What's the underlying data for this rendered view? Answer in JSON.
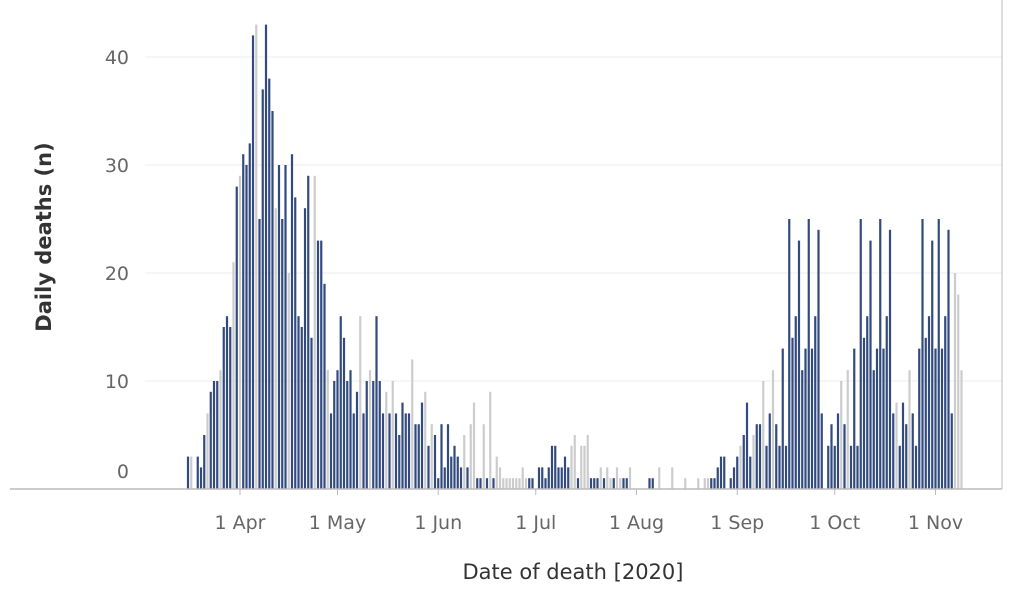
{
  "chart_data": {
    "type": "bar",
    "title": "",
    "xlabel": "Date of death [2020]",
    "ylabel": "Daily deaths (n)",
    "ylim": [
      0,
      45
    ],
    "grid": true,
    "colors": {
      "primary": "#334a7f",
      "secondary": "#cccccc",
      "grid": "#eeeeee",
      "axis": "#bbbbbb"
    },
    "x_ticks": [
      {
        "date": "2020-04-01",
        "label": "1 Apr"
      },
      {
        "date": "2020-05-01",
        "label": "1 May"
      },
      {
        "date": "2020-06-01",
        "label": "1 Jun"
      },
      {
        "date": "2020-07-01",
        "label": "1 Jul"
      },
      {
        "date": "2020-08-01",
        "label": "1 Aug"
      },
      {
        "date": "2020-09-01",
        "label": "1 Sep"
      },
      {
        "date": "2020-10-01",
        "label": "1 Oct"
      },
      {
        "date": "2020-11-01",
        "label": "1 Nov"
      }
    ],
    "y_ticks": [
      0,
      10,
      20,
      30,
      40
    ],
    "series": [
      {
        "data": [
          [
            "2020-03-16",
            3
          ],
          [
            "2020-03-19",
            3
          ],
          [
            "2020-03-20",
            2
          ],
          [
            "2020-03-21",
            5
          ],
          [
            "2020-03-23",
            9
          ],
          [
            "2020-03-24",
            10
          ],
          [
            "2020-03-25",
            10
          ],
          [
            "2020-03-27",
            15
          ],
          [
            "2020-03-28",
            16
          ],
          [
            "2020-03-29",
            15
          ],
          [
            "2020-03-31",
            28
          ],
          [
            "2020-04-02",
            31
          ],
          [
            "2020-04-03",
            30
          ],
          [
            "2020-04-04",
            32
          ],
          [
            "2020-04-05",
            42
          ],
          [
            "2020-04-07",
            25
          ],
          [
            "2020-04-08",
            37
          ],
          [
            "2020-04-09",
            43
          ],
          [
            "2020-04-10",
            38
          ],
          [
            "2020-04-11",
            35
          ],
          [
            "2020-04-13",
            30
          ],
          [
            "2020-04-14",
            25
          ],
          [
            "2020-04-15",
            30
          ],
          [
            "2020-04-17",
            31
          ],
          [
            "2020-04-18",
            27
          ],
          [
            "2020-04-19",
            16
          ],
          [
            "2020-04-20",
            15
          ],
          [
            "2020-04-21",
            26
          ],
          [
            "2020-04-22",
            29
          ],
          [
            "2020-04-23",
            14
          ],
          [
            "2020-04-25",
            23
          ],
          [
            "2020-04-26",
            23
          ],
          [
            "2020-04-27",
            19
          ],
          [
            "2020-04-29",
            7
          ],
          [
            "2020-04-30",
            10
          ],
          [
            "2020-05-01",
            11
          ],
          [
            "2020-05-02",
            16
          ],
          [
            "2020-05-03",
            14
          ],
          [
            "2020-05-04",
            10
          ],
          [
            "2020-05-05",
            11
          ],
          [
            "2020-05-06",
            7
          ],
          [
            "2020-05-07",
            9
          ],
          [
            "2020-05-09",
            7
          ],
          [
            "2020-05-10",
            10
          ],
          [
            "2020-05-12",
            10
          ],
          [
            "2020-05-13",
            16
          ],
          [
            "2020-05-14",
            10
          ],
          [
            "2020-05-15",
            7
          ],
          [
            "2020-05-17",
            7
          ],
          [
            "2020-05-19",
            7
          ],
          [
            "2020-05-20",
            5
          ],
          [
            "2020-05-21",
            8
          ],
          [
            "2020-05-22",
            7
          ],
          [
            "2020-05-23",
            7
          ],
          [
            "2020-05-25",
            6
          ],
          [
            "2020-05-26",
            6
          ],
          [
            "2020-05-27",
            8
          ],
          [
            "2020-05-29",
            4
          ],
          [
            "2020-05-31",
            5
          ],
          [
            "2020-06-01",
            1
          ],
          [
            "2020-06-02",
            6
          ],
          [
            "2020-06-03",
            2
          ],
          [
            "2020-06-04",
            6
          ],
          [
            "2020-06-05",
            3
          ],
          [
            "2020-06-06",
            4
          ],
          [
            "2020-06-07",
            3
          ],
          [
            "2020-06-08",
            2
          ],
          [
            "2020-06-10",
            2
          ],
          [
            "2020-06-13",
            1
          ],
          [
            "2020-06-14",
            1
          ],
          [
            "2020-06-16",
            1
          ],
          [
            "2020-06-18",
            1
          ],
          [
            "2020-06-29",
            1
          ],
          [
            "2020-06-30",
            1
          ],
          [
            "2020-07-02",
            2
          ],
          [
            "2020-07-03",
            2
          ],
          [
            "2020-07-04",
            1
          ],
          [
            "2020-07-05",
            2
          ],
          [
            "2020-07-06",
            4
          ],
          [
            "2020-07-07",
            4
          ],
          [
            "2020-07-08",
            2
          ],
          [
            "2020-07-09",
            2
          ],
          [
            "2020-07-10",
            3
          ],
          [
            "2020-07-11",
            2
          ],
          [
            "2020-07-14",
            1
          ],
          [
            "2020-07-18",
            1
          ],
          [
            "2020-07-19",
            1
          ],
          [
            "2020-07-20",
            1
          ],
          [
            "2020-07-22",
            1
          ],
          [
            "2020-07-25",
            1
          ],
          [
            "2020-07-28",
            1
          ],
          [
            "2020-07-29",
            1
          ],
          [
            "2020-08-05",
            1
          ],
          [
            "2020-08-06",
            1
          ],
          [
            "2020-08-24",
            1
          ],
          [
            "2020-08-25",
            1
          ],
          [
            "2020-08-26",
            2
          ],
          [
            "2020-08-27",
            3
          ],
          [
            "2020-08-28",
            3
          ],
          [
            "2020-08-30",
            1
          ],
          [
            "2020-08-31",
            2
          ],
          [
            "2020-09-01",
            3
          ],
          [
            "2020-09-03",
            5
          ],
          [
            "2020-09-04",
            8
          ],
          [
            "2020-09-05",
            3
          ],
          [
            "2020-09-07",
            6
          ],
          [
            "2020-09-08",
            6
          ],
          [
            "2020-09-10",
            4
          ],
          [
            "2020-09-11",
            7
          ],
          [
            "2020-09-13",
            6
          ],
          [
            "2020-09-14",
            4
          ],
          [
            "2020-09-15",
            13
          ],
          [
            "2020-09-16",
            4
          ],
          [
            "2020-09-17",
            25
          ],
          [
            "2020-09-18",
            14
          ],
          [
            "2020-09-19",
            16
          ],
          [
            "2020-09-20",
            23
          ],
          [
            "2020-09-21",
            11
          ],
          [
            "2020-09-22",
            13
          ],
          [
            "2020-09-23",
            25
          ],
          [
            "2020-09-24",
            13
          ],
          [
            "2020-09-25",
            16
          ],
          [
            "2020-09-26",
            24
          ],
          [
            "2020-09-27",
            7
          ],
          [
            "2020-09-29",
            4
          ],
          [
            "2020-09-30",
            6
          ],
          [
            "2020-10-01",
            4
          ],
          [
            "2020-10-02",
            7
          ],
          [
            "2020-10-04",
            6
          ],
          [
            "2020-10-06",
            4
          ],
          [
            "2020-10-07",
            13
          ],
          [
            "2020-10-08",
            4
          ],
          [
            "2020-10-09",
            25
          ],
          [
            "2020-10-10",
            14
          ],
          [
            "2020-10-11",
            16
          ],
          [
            "2020-10-12",
            23
          ],
          [
            "2020-10-13",
            11
          ],
          [
            "2020-10-14",
            13
          ],
          [
            "2020-10-15",
            25
          ],
          [
            "2020-10-16",
            13
          ],
          [
            "2020-10-17",
            16
          ],
          [
            "2020-10-18",
            24
          ],
          [
            "2020-10-19",
            7
          ],
          [
            "2020-10-21",
            4
          ],
          [
            "2020-10-22",
            8
          ],
          [
            "2020-10-23",
            6
          ],
          [
            "2020-10-25",
            7
          ],
          [
            "2020-10-26",
            4
          ],
          [
            "2020-10-27",
            13
          ],
          [
            "2020-10-28",
            25
          ],
          [
            "2020-10-29",
            14
          ],
          [
            "2020-10-30",
            16
          ],
          [
            "2020-10-31",
            23
          ],
          [
            "2020-11-01",
            13
          ],
          [
            "2020-11-02",
            25
          ],
          [
            "2020-11-03",
            13
          ],
          [
            "2020-11-04",
            16
          ],
          [
            "2020-11-05",
            24
          ],
          [
            "2020-11-06",
            7
          ]
        ]
      },
      {
        "data": [
          [
            "2020-03-17",
            3
          ],
          [
            "2020-03-22",
            7
          ],
          [
            "2020-03-26",
            11
          ],
          [
            "2020-03-30",
            21
          ],
          [
            "2020-04-01",
            29
          ],
          [
            "2020-04-06",
            43
          ],
          [
            "2020-04-12",
            26
          ],
          [
            "2020-04-16",
            20
          ],
          [
            "2020-04-24",
            29
          ],
          [
            "2020-04-28",
            11
          ],
          [
            "2020-05-08",
            16
          ],
          [
            "2020-05-11",
            11
          ],
          [
            "2020-05-16",
            9
          ],
          [
            "2020-05-18",
            10
          ],
          [
            "2020-05-24",
            12
          ],
          [
            "2020-05-28",
            9
          ],
          [
            "2020-05-30",
            6
          ],
          [
            "2020-06-09",
            5
          ],
          [
            "2020-06-11",
            6
          ],
          [
            "2020-06-12",
            8
          ],
          [
            "2020-06-15",
            6
          ],
          [
            "2020-06-17",
            9
          ],
          [
            "2020-06-19",
            3
          ],
          [
            "2020-06-20",
            2
          ],
          [
            "2020-06-21",
            1
          ],
          [
            "2020-06-22",
            1
          ],
          [
            "2020-06-23",
            1
          ],
          [
            "2020-06-24",
            1
          ],
          [
            "2020-06-25",
            1
          ],
          [
            "2020-06-26",
            1
          ],
          [
            "2020-06-27",
            2
          ],
          [
            "2020-06-28",
            1
          ],
          [
            "2020-07-12",
            4
          ],
          [
            "2020-07-13",
            5
          ],
          [
            "2020-07-15",
            4
          ],
          [
            "2020-07-16",
            4
          ],
          [
            "2020-07-17",
            5
          ],
          [
            "2020-07-21",
            2
          ],
          [
            "2020-07-23",
            2
          ],
          [
            "2020-07-24",
            1
          ],
          [
            "2020-07-26",
            2
          ],
          [
            "2020-07-27",
            1
          ],
          [
            "2020-07-30",
            2
          ],
          [
            "2020-08-08",
            2
          ],
          [
            "2020-08-12",
            2
          ],
          [
            "2020-08-16",
            1
          ],
          [
            "2020-08-20",
            1
          ],
          [
            "2020-08-22",
            1
          ],
          [
            "2020-08-23",
            1
          ],
          [
            "2020-09-02",
            4
          ],
          [
            "2020-09-06",
            5
          ],
          [
            "2020-09-09",
            10
          ],
          [
            "2020-09-12",
            11
          ],
          [
            "2020-10-03",
            10
          ],
          [
            "2020-10-05",
            11
          ],
          [
            "2020-10-20",
            8
          ],
          [
            "2020-10-24",
            11
          ],
          [
            "2020-11-07",
            20
          ],
          [
            "2020-11-08",
            18
          ],
          [
            "2020-11-09",
            11
          ]
        ]
      }
    ]
  }
}
